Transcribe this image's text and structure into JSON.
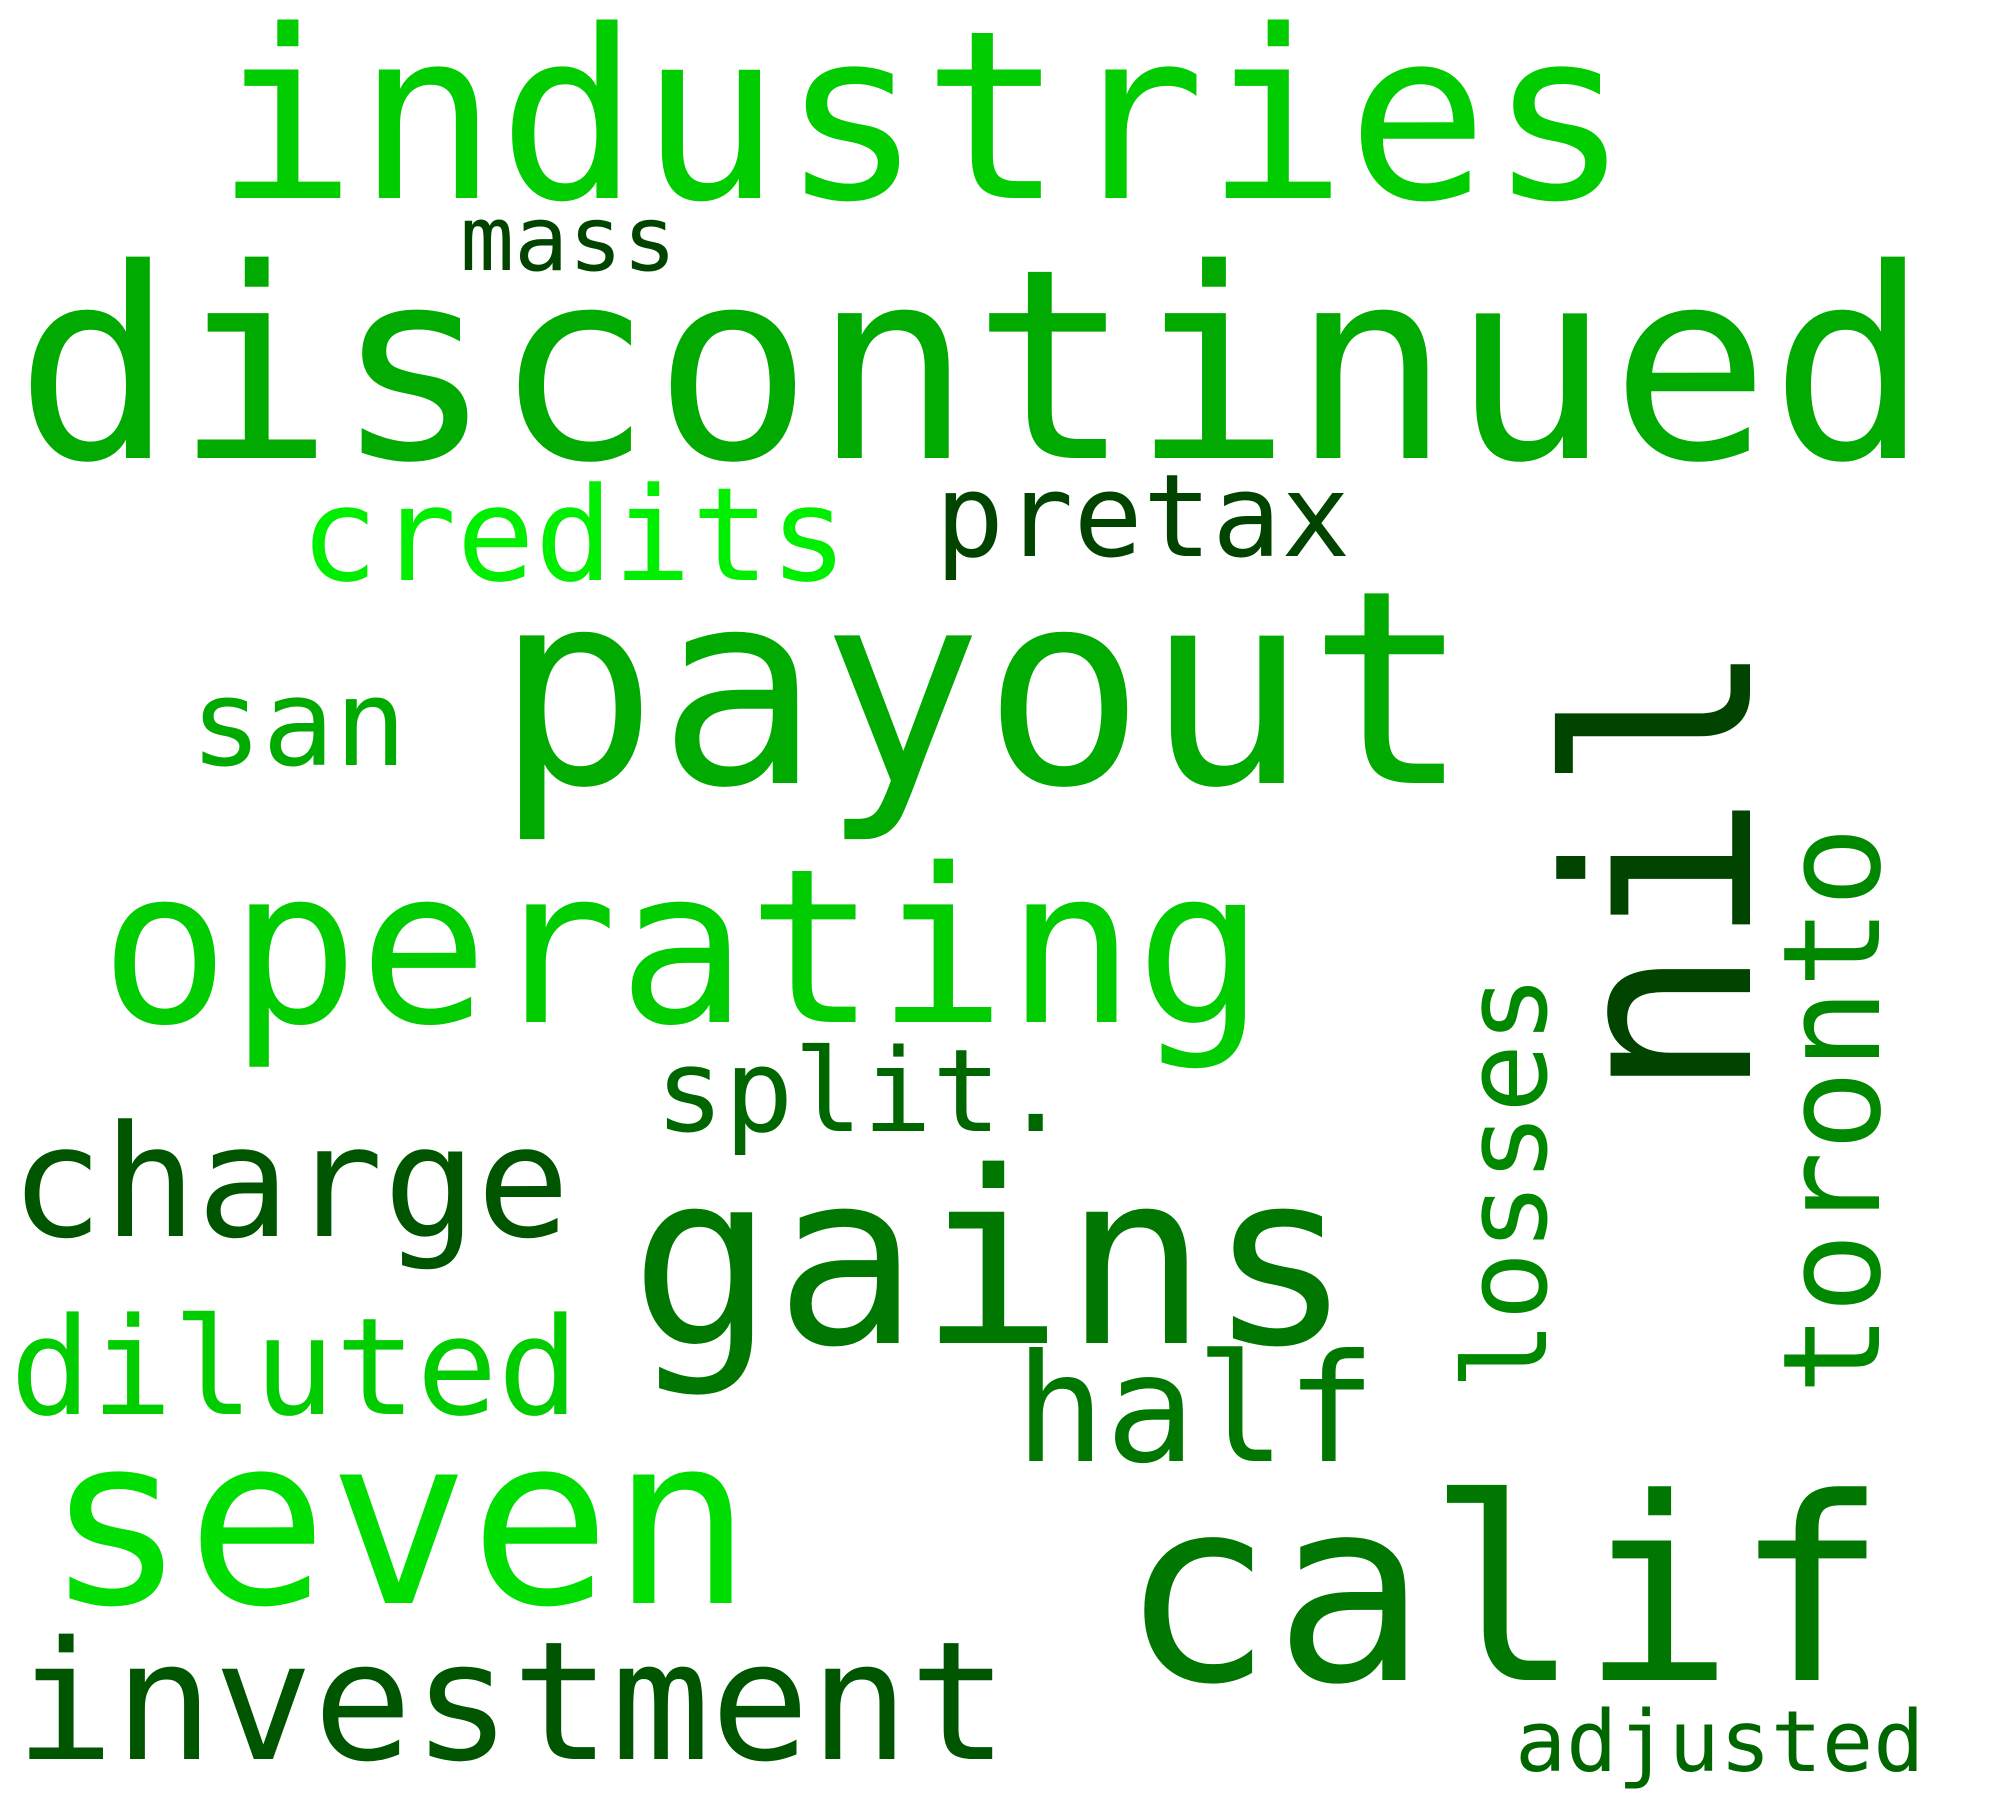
{
  "words": [
    {
      "id": "industries",
      "text": "industries",
      "color": "#00cc00"
    },
    {
      "id": "disc",
      "text": "discontinued",
      "color": "#00aa00"
    },
    {
      "id": "mass",
      "text": "mass",
      "color": "#004400"
    },
    {
      "id": "credits",
      "text": "credits",
      "color": "#00ee00"
    },
    {
      "id": "pretax",
      "text": "pretax",
      "color": "#004400"
    },
    {
      "id": "payout",
      "text": "payout",
      "color": "#00aa00"
    },
    {
      "id": "nil",
      "text": "nil",
      "color": "#004400"
    },
    {
      "id": "toronto",
      "text": "toronto",
      "color": "#008800"
    },
    {
      "id": "san",
      "text": "san",
      "color": "#00aa00"
    },
    {
      "id": "operating",
      "text": "operating",
      "color": "#00cc00"
    },
    {
      "id": "losses",
      "text": "losses",
      "color": "#008800"
    },
    {
      "id": "split",
      "text": "split.",
      "color": "#006600"
    },
    {
      "id": "charge",
      "text": "charge",
      "color": "#005500"
    },
    {
      "id": "gains",
      "text": "gains",
      "color": "#007700"
    },
    {
      "id": "diluted",
      "text": "diluted",
      "color": "#00cc00"
    },
    {
      "id": "half",
      "text": "half",
      "color": "#007700"
    },
    {
      "id": "seven",
      "text": "seven",
      "color": "#00dd00"
    },
    {
      "id": "calif",
      "text": "calif",
      "color": "#007700"
    },
    {
      "id": "investment",
      "text": "investment",
      "color": "#005500"
    },
    {
      "id": "adjusted",
      "text": "adjusted",
      "color": "#006600"
    }
  ]
}
